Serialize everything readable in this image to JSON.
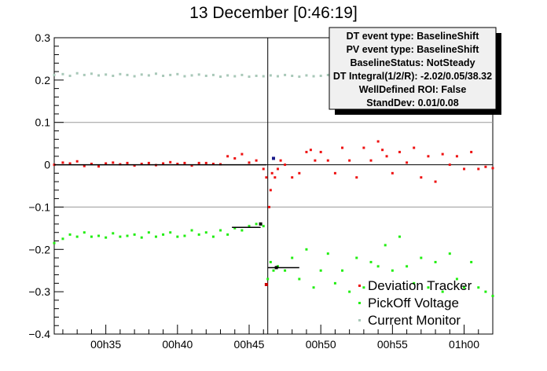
{
  "chart_data": {
    "type": "scatter",
    "title": "13 December [0:46:19]",
    "xlabel": "",
    "ylabel": "",
    "x_unit": "minutes",
    "xlim": [
      31.4,
      62.0
    ],
    "ylim": [
      -0.4,
      0.3
    ],
    "x_ticks": [
      {
        "value": 35,
        "label": "00h35"
      },
      {
        "value": 40,
        "label": "00h40"
      },
      {
        "value": 45,
        "label": "00h45"
      },
      {
        "value": 50,
        "label": "00h50"
      },
      {
        "value": 55,
        "label": "00h55"
      },
      {
        "value": 60,
        "label": "01h00"
      }
    ],
    "y_ticks": [
      {
        "value": 0.3,
        "label": "0.3"
      },
      {
        "value": 0.2,
        "label": "0.2"
      },
      {
        "value": 0.1,
        "label": "0.1"
      },
      {
        "value": 0,
        "label": "0"
      },
      {
        "value": -0.1,
        "label": "−0.1"
      },
      {
        "value": -0.2,
        "label": "−0.2"
      },
      {
        "value": -0.3,
        "label": "−0.3"
      },
      {
        "value": -0.4,
        "label": "−0.4"
      }
    ],
    "reference_lines": {
      "horizontal": [
        0.1,
        0,
        -0.1
      ],
      "vertical": [
        46.3
      ]
    },
    "series": [
      {
        "name": "Deviation Tracker",
        "color": "#ee1111",
        "x": [
          31.4,
          32,
          32.5,
          33,
          33.5,
          34,
          34.5,
          35,
          35.5,
          36,
          36.5,
          37,
          37.5,
          38,
          38.5,
          39,
          39.5,
          40,
          40.5,
          41,
          41.5,
          42,
          42.5,
          43,
          43.5,
          44,
          44.5,
          45,
          45.5,
          46,
          46.2,
          46.4,
          46.5,
          46.6,
          46.8,
          47,
          47.2,
          47.5,
          48,
          48.5,
          49,
          49.3,
          49.6,
          50,
          50.5,
          51,
          51.5,
          52,
          52.5,
          53,
          53.5,
          54,
          54.3,
          54.6,
          55,
          55.5,
          56,
          56.5,
          57,
          57.5,
          58,
          58.5,
          59,
          59.5,
          60,
          60.5,
          61,
          61.5,
          62
        ],
        "y": [
          0,
          0.005,
          0.003,
          0.008,
          -0.003,
          0.002,
          -0.004,
          0.003,
          0.005,
          0.001,
          0.004,
          -0.002,
          0.002,
          0.004,
          -0.001,
          0.003,
          0.006,
          0.002,
          0.004,
          -0.002,
          0.004,
          0.004,
          0.002,
          0.001,
          0.02,
          0.015,
          0.025,
          0.005,
          0.01,
          -0.01,
          -0.03,
          -0.1,
          -0.06,
          -0.02,
          -0.03,
          -0.01,
          0.01,
          0,
          -0.03,
          -0.02,
          0.03,
          0.035,
          0.01,
          0.03,
          0.01,
          -0.02,
          0.04,
          0.01,
          -0.03,
          0.04,
          0.01,
          0.055,
          0.035,
          0.02,
          -0.02,
          0.03,
          0.005,
          0.04,
          -0.03,
          0.02,
          -0.04,
          0.025,
          0,
          0.02,
          -0.01,
          0.03,
          -0.01,
          -0.005,
          -0.008
        ]
      },
      {
        "name": "PickOff Voltage",
        "color": "#22ee11",
        "x": [
          31.4,
          32,
          32.5,
          33,
          33.5,
          34,
          34.5,
          35,
          35.5,
          36,
          36.5,
          37,
          37.5,
          38,
          38.5,
          39,
          39.5,
          40,
          40.5,
          41,
          41.5,
          42,
          42.5,
          43,
          43.5,
          44,
          44.5,
          45,
          45.5,
          46,
          46.3,
          46.5,
          46.7,
          47,
          47.5,
          48,
          48.5,
          49,
          49.5,
          50,
          50.5,
          51,
          51.5,
          52,
          52.5,
          53,
          53.5,
          54,
          54.5,
          55,
          55.5,
          56,
          56.5,
          57,
          57.5,
          58,
          58.5,
          59,
          59.5,
          60,
          60.5,
          61,
          61.5,
          62
        ],
        "y": [
          -0.185,
          -0.175,
          -0.165,
          -0.17,
          -0.16,
          -0.17,
          -0.168,
          -0.172,
          -0.162,
          -0.17,
          -0.168,
          -0.165,
          -0.172,
          -0.16,
          -0.17,
          -0.165,
          -0.16,
          -0.17,
          -0.168,
          -0.155,
          -0.165,
          -0.16,
          -0.17,
          -0.155,
          -0.165,
          -0.15,
          -0.155,
          -0.145,
          -0.14,
          -0.145,
          -0.27,
          -0.23,
          -0.25,
          -0.24,
          -0.25,
          -0.22,
          -0.27,
          -0.2,
          -0.29,
          -0.25,
          -0.21,
          -0.28,
          -0.25,
          -0.3,
          -0.22,
          -0.29,
          -0.23,
          -0.24,
          -0.19,
          -0.25,
          -0.17,
          -0.24,
          -0.28,
          -0.22,
          -0.29,
          -0.23,
          -0.3,
          -0.21,
          -0.27,
          -0.29,
          -0.23,
          -0.29,
          -0.3,
          -0.31
        ]
      },
      {
        "name": "Current Monitor",
        "color": "#a8c8b8",
        "x": [
          31.4,
          32,
          32.5,
          33,
          33.5,
          34,
          34.5,
          35,
          35.5,
          36,
          36.5,
          37,
          37.5,
          38,
          38.5,
          39,
          39.5,
          40,
          40.5,
          41,
          41.5,
          42,
          42.5,
          43,
          43.5,
          44,
          44.5,
          45,
          45.5,
          46,
          46.5,
          47,
          47.5,
          48,
          48.5,
          49,
          49.5,
          50,
          50.5,
          51,
          51.5,
          52,
          52.5,
          53,
          53.5,
          54,
          54.5,
          55,
          55.5,
          56,
          56.5,
          57,
          57.5,
          58,
          58.5,
          59,
          59.5,
          60,
          60.5,
          61,
          61.5,
          62
        ],
        "y": [
          0.212,
          0.214,
          0.21,
          0.216,
          0.212,
          0.215,
          0.211,
          0.213,
          0.21,
          0.214,
          0.212,
          0.209,
          0.213,
          0.211,
          0.215,
          0.21,
          0.212,
          0.214,
          0.209,
          0.211,
          0.213,
          0.21,
          0.212,
          0.208,
          0.211,
          0.209,
          0.212,
          0.208,
          0.21,
          0.209,
          0.211,
          0.209,
          0.212,
          0.21,
          0.208,
          0.211,
          0.209,
          0.21,
          0.212,
          0.209,
          0.211,
          0.21,
          0.212,
          0.209,
          0.211,
          0.21,
          0.208,
          0.211,
          0.209,
          0.212,
          0.21,
          0.211,
          0.209,
          0.21,
          0.212,
          0.209,
          0.211,
          0.21,
          0.209,
          0.211,
          0.21,
          0.209
        ]
      }
    ],
    "segments": [
      {
        "x1": 31.4,
        "x2": 46.2,
        "y": 0,
        "color": "#000000"
      },
      {
        "x1": 43.8,
        "x2": 45.8,
        "y": -0.148,
        "color": "#000000"
      },
      {
        "x1": 46.3,
        "x2": 48.5,
        "y": -0.243,
        "color": "#000000"
      }
    ],
    "markers": [
      {
        "x": 46.7,
        "y": 0.015,
        "color": "#1a1a8a"
      },
      {
        "x": 45.8,
        "y": -0.14,
        "color": "#000000"
      },
      {
        "x": 46.2,
        "y": -0.283,
        "color": "#cc0000"
      },
      {
        "x": 46.9,
        "y": -0.243,
        "color": "#000000"
      }
    ],
    "stats_box": [
      "DT event type: BaselineShift",
      "PV event type: BaselineShift",
      "BaselineStatus: NotSteady",
      "DT Integral(1/2/R): -2.02/0.05/38.32",
      "WellDefined ROI: False",
      "StandDev: 0.01/0.08"
    ],
    "legend": {
      "position": "bottom-right",
      "entries": [
        "Deviation Tracker",
        "PickOff Voltage",
        "Current Monitor"
      ]
    },
    "grid": false
  }
}
